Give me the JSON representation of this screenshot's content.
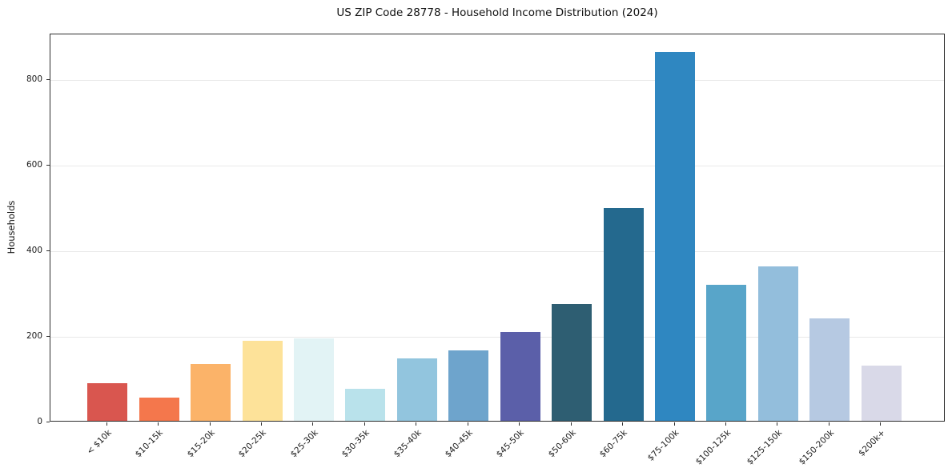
{
  "chart_data": {
    "type": "bar",
    "title": "US ZIP Code 28778 - Household Income Distribution (2024)",
    "xlabel": "",
    "ylabel": "Households",
    "ylim": [
      0,
      906
    ],
    "yticks": [
      0,
      200,
      400,
      600,
      800
    ],
    "grid": true,
    "legend": "none",
    "categories": [
      "< $10k",
      "$10-15k",
      "$15-20k",
      "$20-25k",
      "$25-30k",
      "$30-35k",
      "$35-40k",
      "$40-45k",
      "$45-50k",
      "$50-60k",
      "$60-75k",
      "$75-100k",
      "$100-125k",
      "$125-150k",
      "$150-200k",
      "$200k+"
    ],
    "values": [
      88,
      55,
      133,
      186,
      192,
      75,
      146,
      164,
      207,
      272,
      497,
      862,
      318,
      361,
      239,
      129
    ],
    "colors": [
      "#d9564f",
      "#f4774c",
      "#fbb369",
      "#fde299",
      "#e2f3f5",
      "#b9e2eb",
      "#92c5de",
      "#6ea4cc",
      "#5b5fa9",
      "#2e5e72",
      "#24698e",
      "#2f87c1",
      "#58a5c9",
      "#93bedc",
      "#b6c9e2",
      "#d9d9e8"
    ]
  }
}
